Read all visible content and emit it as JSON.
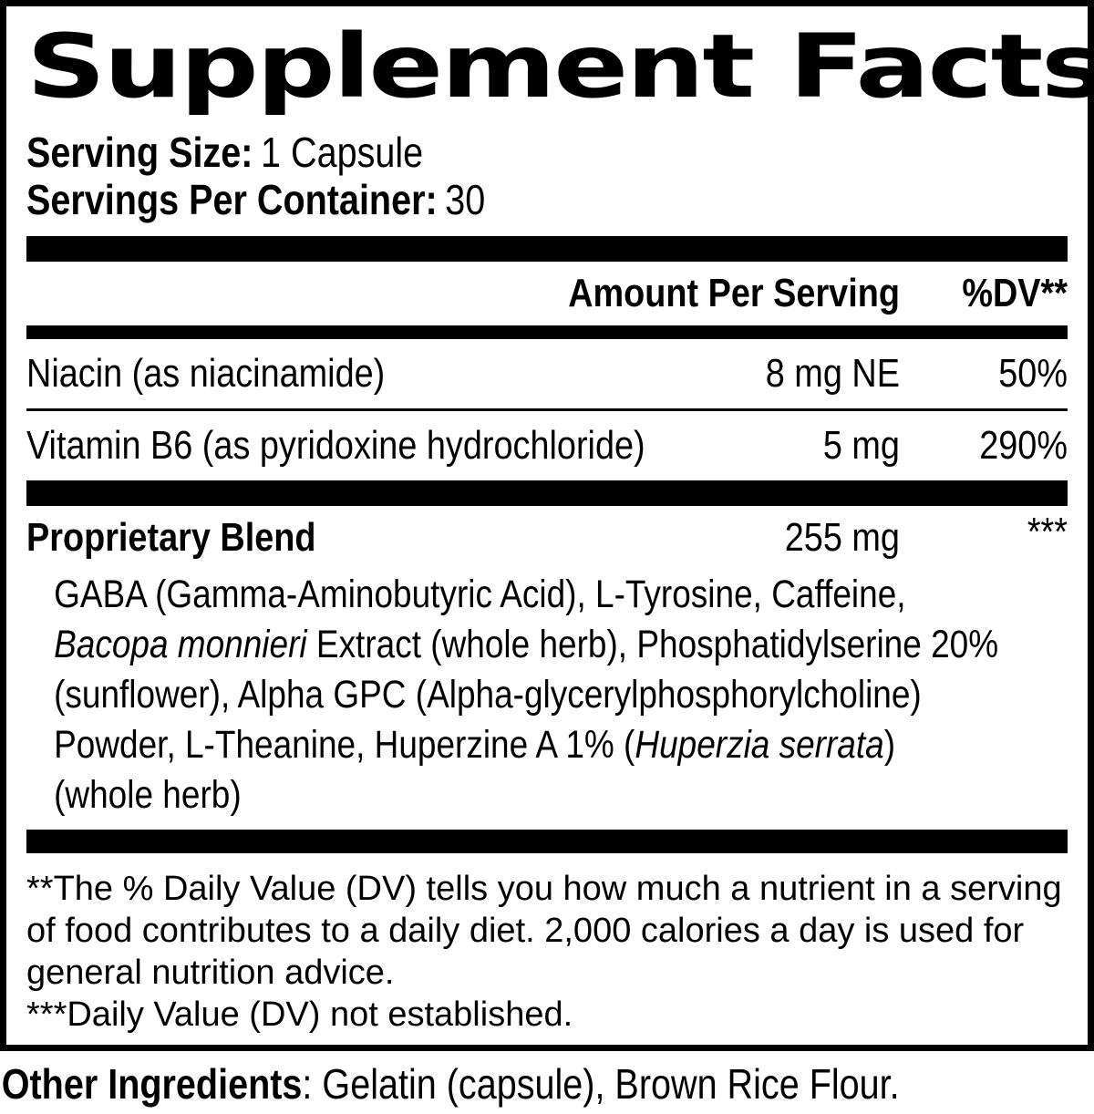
{
  "title": "Supplement Facts",
  "serving": {
    "size_label": "Serving Size:",
    "size_value": "1 Capsule",
    "per_container_label": "Servings Per Container:",
    "per_container_value": "30"
  },
  "table": {
    "amount_header": "Amount Per Serving",
    "dv_header": "%DV**",
    "rows": [
      {
        "name": "Niacin (as niacinamide)",
        "amount": "8 mg NE",
        "dv": "50%"
      },
      {
        "name": "Vitamin B6 (as pyridoxine hydrochloride)",
        "amount": "5 mg",
        "dv": "290%"
      }
    ],
    "blend": {
      "name": "Proprietary Blend",
      "amount": "255 mg",
      "dv": "***",
      "ingredient_lines": [
        [
          {
            "text": "GABA (Gamma-Aminobutyric Acid), L-Tyrosine, Caffeine,",
            "italic": false
          }
        ],
        [
          {
            "text": "Bacopa monnieri",
            "italic": true
          },
          {
            "text": " Extract (whole herb), Phosphatidylserine 20%",
            "italic": false
          }
        ],
        [
          {
            "text": "(sunflower), Alpha GPC (Alpha-glycerylphosphorylcholine)",
            "italic": false
          }
        ],
        [
          {
            "text": "Powder, L-Theanine, Huperzine A 1% (",
            "italic": false
          },
          {
            "text": "Huperzia serrata",
            "italic": true
          },
          {
            "text": ")",
            "italic": false
          }
        ],
        [
          {
            "text": "(whole herb)",
            "italic": false
          }
        ]
      ]
    }
  },
  "footnotes": {
    "dv_note": "**The % Daily Value (DV) tells you how much a nutrient in a serving of food contributes to a daily diet. 2,000 calories a day is used for general nutrition advice.",
    "not_established": "***Daily Value (DV) not established."
  },
  "other_ingredients": {
    "label": "Other Ingredients",
    "value": ": Gelatin (capsule), Brown Rice Flour."
  },
  "colors": {
    "ink": "#000000",
    "background": "#ffffff"
  }
}
